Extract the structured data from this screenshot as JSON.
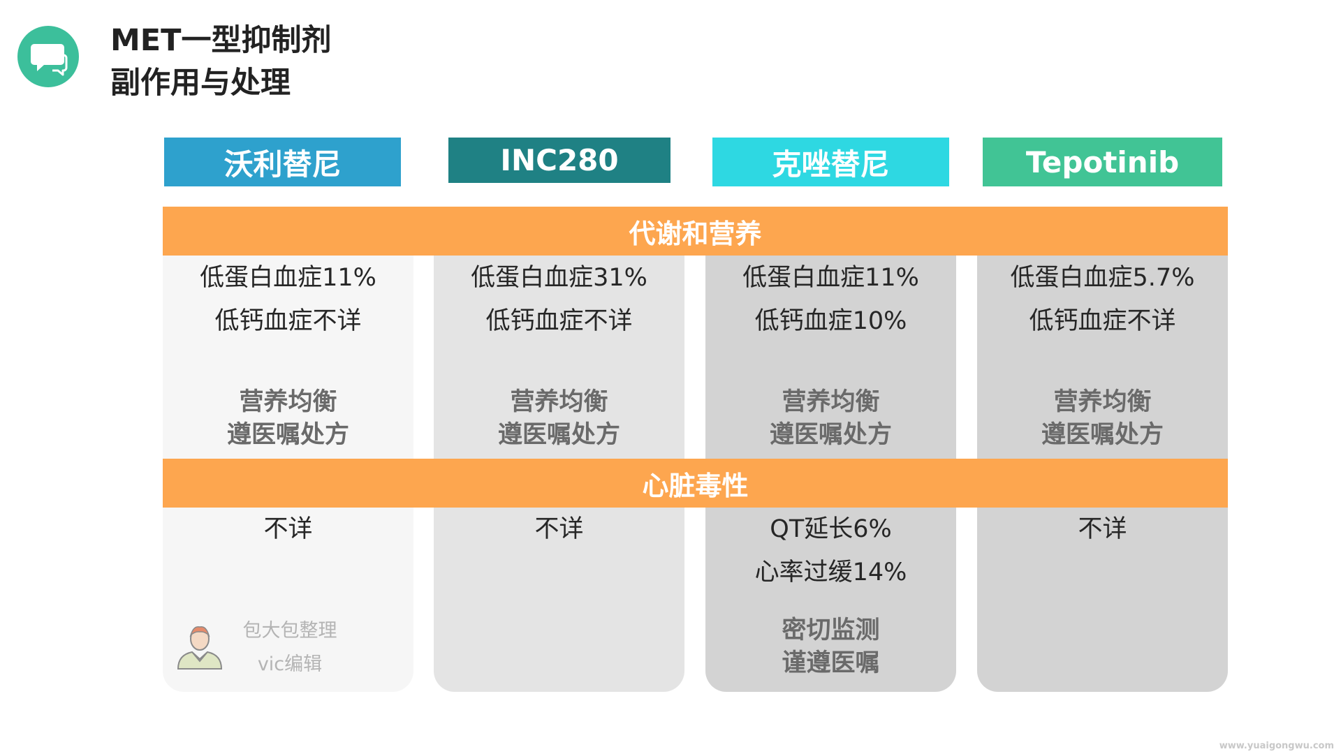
{
  "title": {
    "line1": "MET一型抑制剂",
    "line2": "副作用与处理"
  },
  "colors": {
    "logo": "#3cbf9b",
    "band": "#fda64f",
    "col_bg": [
      "#f6f6f6",
      "#e4e4e4",
      "#d3d3d3",
      "#d3d3d3"
    ]
  },
  "drugs": [
    {
      "name": "沃利替尼",
      "color": "#2ea1cd",
      "metabolism": {
        "stats": [
          "低蛋白血症11%",
          "低钙血症不详"
        ],
        "advice": [
          "营养均衡",
          "遵医嘱处方"
        ]
      },
      "cardiac": {
        "stats": [
          "不详"
        ],
        "advice": []
      }
    },
    {
      "name": "INC280",
      "color": "#1f8184",
      "metabolism": {
        "stats": [
          "低蛋白血症31%",
          "低钙血症不详"
        ],
        "advice": [
          "营养均衡",
          "遵医嘱处方"
        ]
      },
      "cardiac": {
        "stats": [
          "不详"
        ],
        "advice": []
      }
    },
    {
      "name": "克唑替尼",
      "color": "#2ed8e2",
      "metabolism": {
        "stats": [
          "低蛋白血症11%",
          "低钙血症10%"
        ],
        "advice": [
          "营养均衡",
          "遵医嘱处方"
        ]
      },
      "cardiac": {
        "stats": [
          "QT延长6%",
          "心率过缓14%"
        ],
        "advice": [
          "密切监测",
          "谨遵医嘱"
        ]
      }
    },
    {
      "name": "Tepotinib",
      "color": "#41c495",
      "metabolism": {
        "stats": [
          "低蛋白血症5.7%",
          "低钙血症不详"
        ],
        "advice": [
          "营养均衡",
          "遵医嘱处方"
        ]
      },
      "cardiac": {
        "stats": [
          "不详"
        ],
        "advice": []
      }
    }
  ],
  "sections": {
    "metabolism": "代谢和营养",
    "cardiac": "心脏毒性"
  },
  "credit": {
    "line1": "包大包整理",
    "line2": "vic编辑",
    "icon": "editor-avatar-icon"
  },
  "watermark": "www.yuaigongwu.com"
}
